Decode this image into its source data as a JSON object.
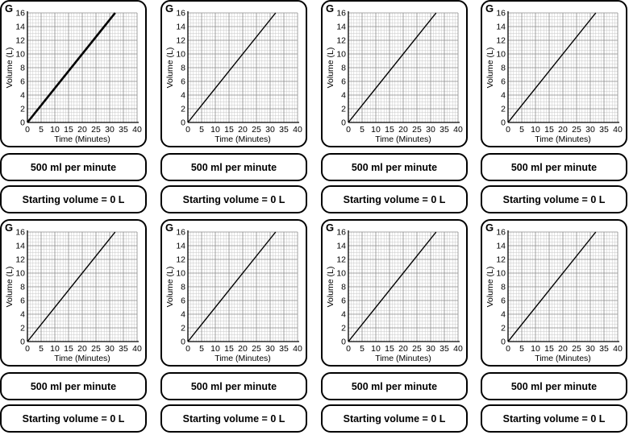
{
  "chart_data": {
    "type": "line",
    "card_letter": "G",
    "xlabel": "Time (Minutes)",
    "ylabel": "Volume (L)",
    "xlim": [
      0,
      40
    ],
    "ylim": [
      0,
      16
    ],
    "x_ticks": [
      0,
      5,
      10,
      15,
      20,
      25,
      30,
      35,
      40
    ],
    "y_ticks": [
      0,
      2,
      4,
      6,
      8,
      10,
      12,
      14,
      16
    ],
    "grid": true,
    "series": [
      {
        "name": "volume",
        "x": [
          0,
          32
        ],
        "y": [
          0,
          16
        ]
      }
    ]
  },
  "cards": {
    "rate_label": "500 ml per minute",
    "start_label": "Starting volume = 0 L"
  },
  "colors": {
    "line": "#000000",
    "grid_major": "#8a8a8a",
    "grid_minor": "#c8c8c8"
  }
}
